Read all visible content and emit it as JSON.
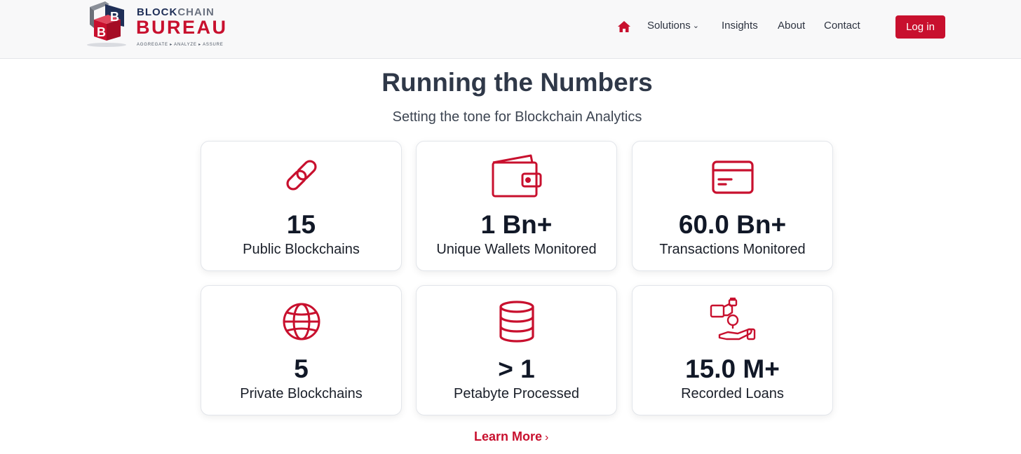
{
  "brand": {
    "word1_a": "BLOCK",
    "word1_b": "CHAIN",
    "word2": "BUREAU",
    "tagline": "AGGREGATE ▸ ANALYZE ▸ ASSURE",
    "primary_color": "#c8102e",
    "navy_color": "#1f2f57"
  },
  "nav": {
    "home_icon": "home-icon",
    "items": [
      {
        "label": "Solutions",
        "has_dropdown": true
      },
      {
        "label": "Insights"
      },
      {
        "label": "About"
      },
      {
        "label": "Contact"
      }
    ],
    "login_label": "Log in"
  },
  "hero": {
    "title": "Running the Numbers",
    "subtitle": "Setting the tone for Blockchain Analytics"
  },
  "stats": [
    {
      "icon": "link-icon",
      "value": "15",
      "label": "Public Blockchains"
    },
    {
      "icon": "wallet-icon",
      "value": "1 Bn+",
      "label": "Unique Wallets Monitored"
    },
    {
      "icon": "credit-card-icon",
      "value": "60.0 Bn+",
      "label": "Transactions Monitored"
    },
    {
      "icon": "globe-icon",
      "value": "5",
      "label": "Private Blockchains"
    },
    {
      "icon": "database-icon",
      "value": "> 1",
      "label": "Petabyte Processed"
    },
    {
      "icon": "loan-hand-icon",
      "value": "15.0 M+",
      "label": "Recorded Loans"
    }
  ],
  "cta": {
    "label": "Learn More",
    "arrow": "›"
  }
}
